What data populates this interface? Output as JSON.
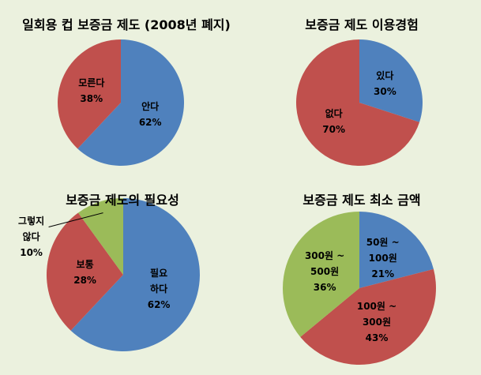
{
  "chart_data": [
    {
      "type": "pie",
      "title": "일회용 컵 보증금 제도 (2008년 폐지)",
      "categories": [
        "안다",
        "모른다"
      ],
      "values": [
        62,
        38
      ],
      "value_labels": [
        "62%",
        "38%"
      ],
      "colors": [
        "#4f81bd",
        "#c0504d"
      ]
    },
    {
      "type": "pie",
      "title": "보증금 제도 이용경험",
      "categories": [
        "있다",
        "없다"
      ],
      "values": [
        30,
        70
      ],
      "value_labels": [
        "30%",
        "70%"
      ],
      "colors": [
        "#4f81bd",
        "#c0504d"
      ]
    },
    {
      "type": "pie",
      "title": "보증금 제도의 필요성",
      "categories": [
        "필요\n하다",
        "보통",
        "그렇지\n않다"
      ],
      "values": [
        62,
        28,
        10
      ],
      "value_labels": [
        "62%",
        "28%",
        "10%"
      ],
      "colors": [
        "#4f81bd",
        "#c0504d",
        "#9bbb59"
      ]
    },
    {
      "type": "pie",
      "title": "보증금 제도 최소 금액",
      "categories": [
        "50원 ~\n100원",
        "100원 ~\n300원",
        "300원 ~\n500원"
      ],
      "values": [
        21,
        43,
        36
      ],
      "value_labels": [
        "21%",
        "43%",
        "36%"
      ],
      "colors": [
        "#4f81bd",
        "#c0504d",
        "#9bbb59"
      ]
    }
  ]
}
